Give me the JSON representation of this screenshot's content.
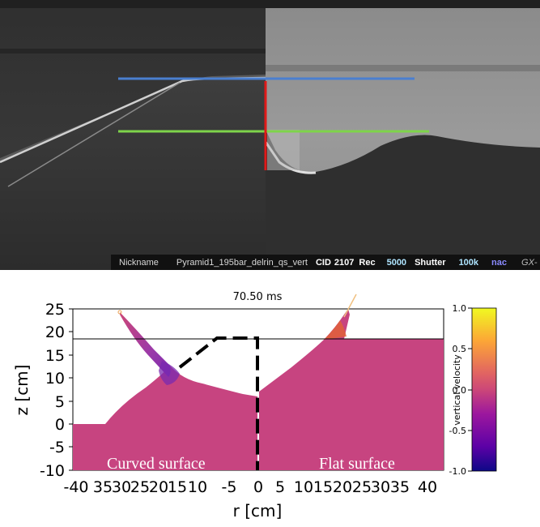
{
  "photo": {
    "status_bar": {
      "nickname_label": "Nickname",
      "nickname_value": "Pyramid1_195bar_delrin_qs_vert",
      "cid_label": "CID",
      "cid_value": "2107",
      "rec_label": "Rec",
      "rec_value": "5000",
      "shutter_label": "Shutter",
      "shutter_value": "100k",
      "nac_label": "nac",
      "gx_label": "GX-"
    },
    "colors": {
      "blue_line": "#4a7fd0",
      "green_line": "#7ed44a",
      "red_line": "#e01818"
    }
  },
  "simulation": {
    "time_label": "70.50 ms",
    "xlabel": "r [cm]",
    "ylabel": "z [cm]",
    "x_ticks": [
      "-40",
      "35",
      "30",
      "25",
      "20",
      "15",
      "10",
      "-5",
      "0",
      "5",
      "10",
      "15",
      "20",
      "25",
      "30",
      "35",
      "40"
    ],
    "y_ticks": [
      "25",
      "20",
      "15",
      "10",
      "5",
      "0",
      "-5",
      "-10"
    ],
    "left_annotation": "Curved surface",
    "right_annotation": "Flat surface",
    "colorbar": {
      "label": "vertical velocity",
      "ticks": [
        "1.0",
        "0.5",
        "0.0",
        "-0.5",
        "-1.0"
      ]
    },
    "colors": {
      "fluid": "#c74480",
      "fluid_dark": "#8a3ab0"
    }
  }
}
